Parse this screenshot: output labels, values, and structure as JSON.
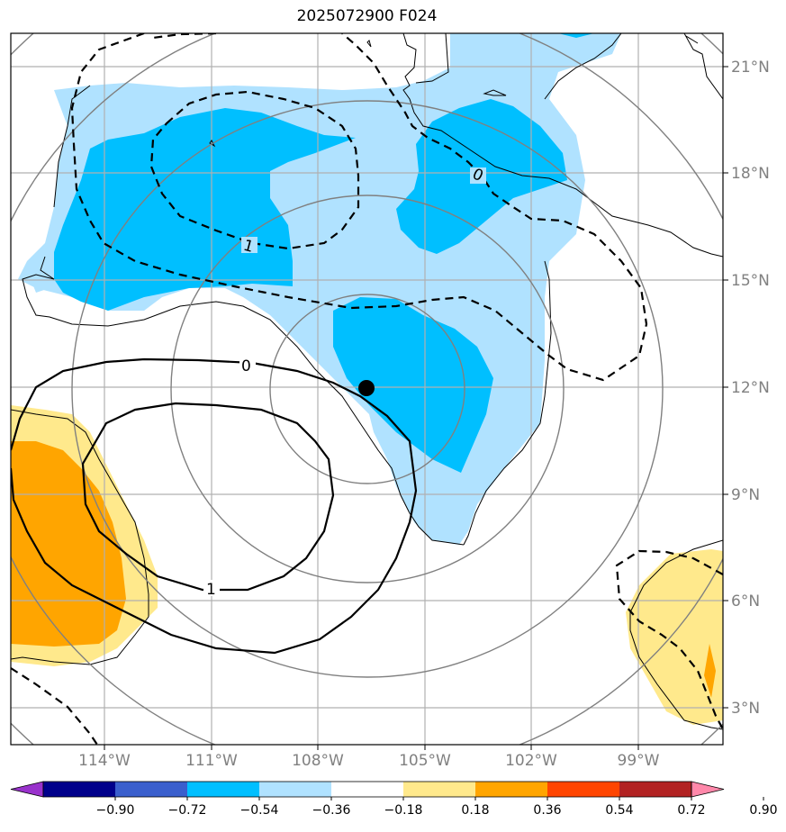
{
  "title": "2025072900 F024",
  "latitude_labels": [
    "21°N",
    "18°N",
    "15°N",
    "12°N",
    "9°N",
    "6°N",
    "3°N"
  ],
  "longitude_labels": [
    "114°W",
    "111°W",
    "108°W",
    "105°W",
    "102°W",
    "99°W"
  ],
  "contour_labels": [
    "0",
    "1",
    "0",
    "1"
  ],
  "colorbar": {
    "ticks": [
      "−0.90",
      "−0.72",
      "−0.54",
      "−0.36",
      "−0.18",
      "0.18",
      "0.36",
      "0.54",
      "0.72",
      "0.90"
    ],
    "colors": [
      "#9932cc",
      "#00008b",
      "#3a5fcd",
      "#00bfff",
      "#b0e2ff",
      "#ffffff",
      "#ffe98c",
      "#ffa500",
      "#ff4500",
      "#b22222",
      "#ff88aa"
    ]
  },
  "colors": {
    "light_blue": "#b0e2ff",
    "deep_sky_blue": "#00bfff",
    "light_yellow": "#ffe98c",
    "orange": "#ffa500",
    "grid": "#b0b0b0",
    "range_rings": "#808080"
  },
  "center_marker": "storm-center"
}
